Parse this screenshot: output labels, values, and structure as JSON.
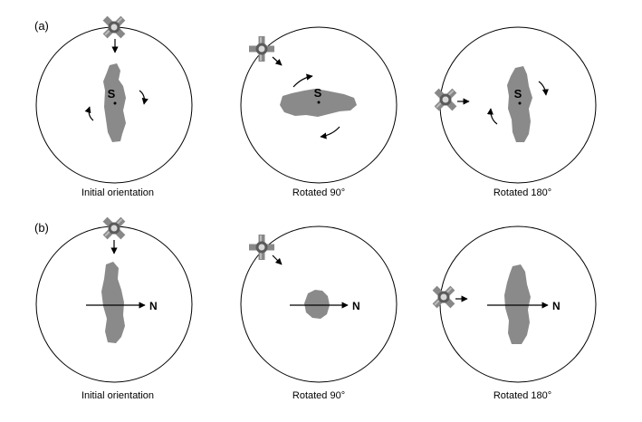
{
  "figure": {
    "row_a": {
      "label": "(a)",
      "captions": [
        "Initial orientation",
        "Rotated 90°",
        "Rotated 180°"
      ],
      "center_label": "S"
    },
    "row_b": {
      "label": "(b)",
      "captions": [
        "Initial orientation",
        "Rotated 90°",
        "Rotated 180°"
      ],
      "direction_label": "N"
    }
  },
  "colors": {
    "blob_fill": "#8a8a8a",
    "line": "#000000",
    "light_source": "#777777"
  },
  "icons": {
    "light_source": "light-source-icon",
    "rotation_arrow": "curved-arrow-icon",
    "direction_arrow": "right-arrow-icon"
  }
}
